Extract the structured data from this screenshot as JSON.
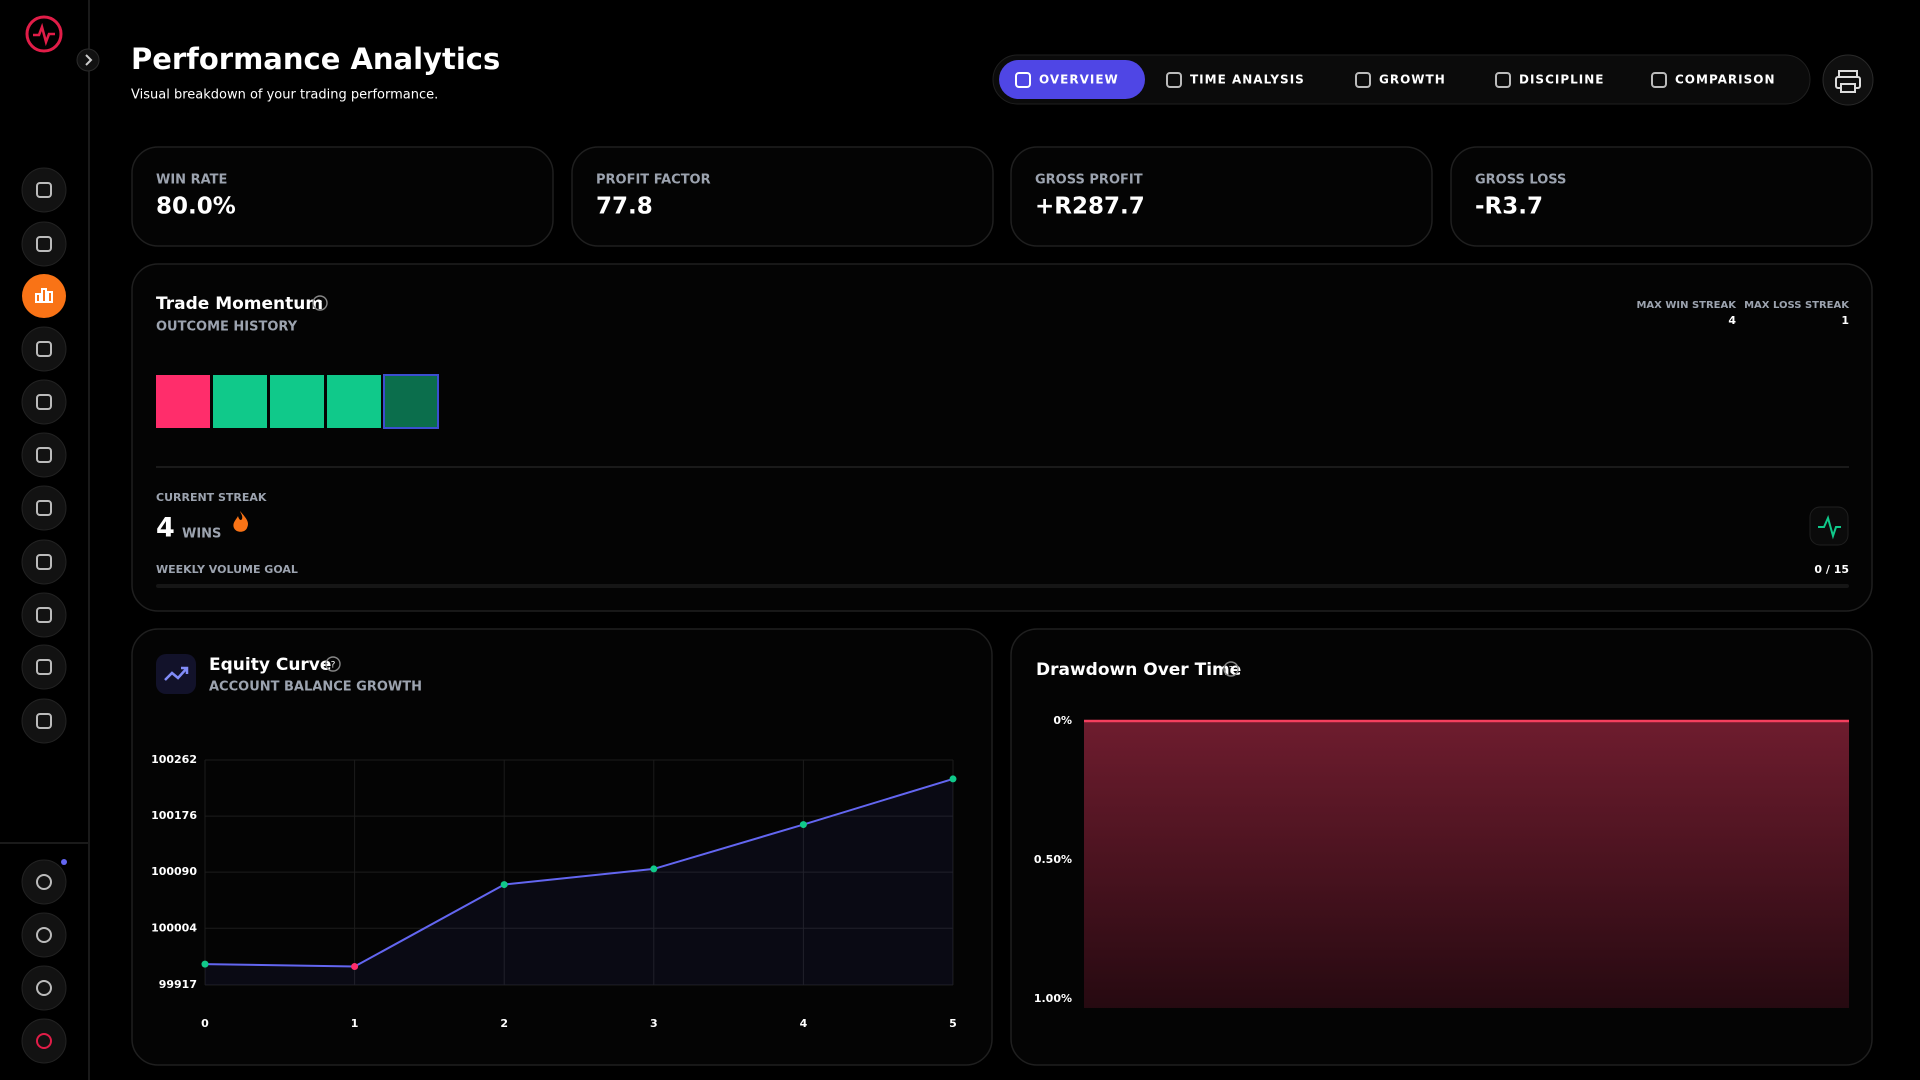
{
  "header": {
    "title": "Performance Analytics",
    "subtitle": "Visual breakdown of your trading performance."
  },
  "tabs": [
    "OVERVIEW",
    "TIME ANALYSIS",
    "GROWTH",
    "DISCIPLINE",
    "COMPARISON"
  ],
  "active_tab": 0,
  "stats": [
    {
      "label": "WIN RATE",
      "value": "80.0%",
      "color": "#ffffff"
    },
    {
      "label": "PROFIT FACTOR",
      "value": "77.8",
      "color": "#ffffff"
    },
    {
      "label": "GROSS PROFIT",
      "value": "+R287.7",
      "color": "#10c98a"
    },
    {
      "label": "GROSS LOSS",
      "value": "-R3.7",
      "color": "#ff2d6b"
    }
  ],
  "momentum": {
    "title": "Trade Momentum",
    "subtitle": "OUTCOME HISTORY",
    "max_win_label": "MAX WIN STREAK",
    "max_win": 4,
    "max_loss_label": "MAX LOSS STREAK",
    "max_loss": 1,
    "outcome_colors": [
      "#ff2d6b",
      "#10c98a",
      "#10c98a",
      "#10c98a",
      "#0b6e4c"
    ],
    "streak_label": "CURRENT STREAK",
    "streak": 4,
    "streak_unit": "WINS",
    "goal_label": "WEEKLY VOLUME GOAL",
    "goal_progress": "0 / 15"
  },
  "chart_data": [
    {
      "type": "line",
      "title": "Equity Curve",
      "subtitle": "ACCOUNT BALANCE GROWTH",
      "x": [
        0,
        1,
        2,
        3,
        4,
        5
      ],
      "xlim": [
        0,
        5
      ],
      "xticks": [
        0,
        1,
        2,
        3,
        4,
        5
      ],
      "ylim": [
        99917,
        100262
      ],
      "yticks": [
        99917,
        100004,
        100090,
        100176,
        100262
      ],
      "series": [
        {
          "color": "#6366f1",
          "values": [
            99949,
            99945.3,
            100071,
            100095,
            100163,
            100233
          ]
        }
      ],
      "point_colors": [
        "#10c98a",
        "#ff2d6b",
        "#10c98a",
        "#10c98a",
        "#10c98a",
        "#10c98a"
      ],
      "grid": true
    },
    {
      "type": "area",
      "title": "Drawdown Over Time",
      "values": [
        0,
        0,
        0,
        0,
        0,
        0
      ],
      "color": "#f43f5e",
      "ylim": [
        0,
        1
      ],
      "inverted": true,
      "yticks": [
        {
          "value": 0,
          "label": "0%"
        },
        {
          "value": 0.5,
          "label": "0.50%"
        },
        {
          "value": 1,
          "label": "1.00%"
        }
      ],
      "grid": false
    }
  ]
}
